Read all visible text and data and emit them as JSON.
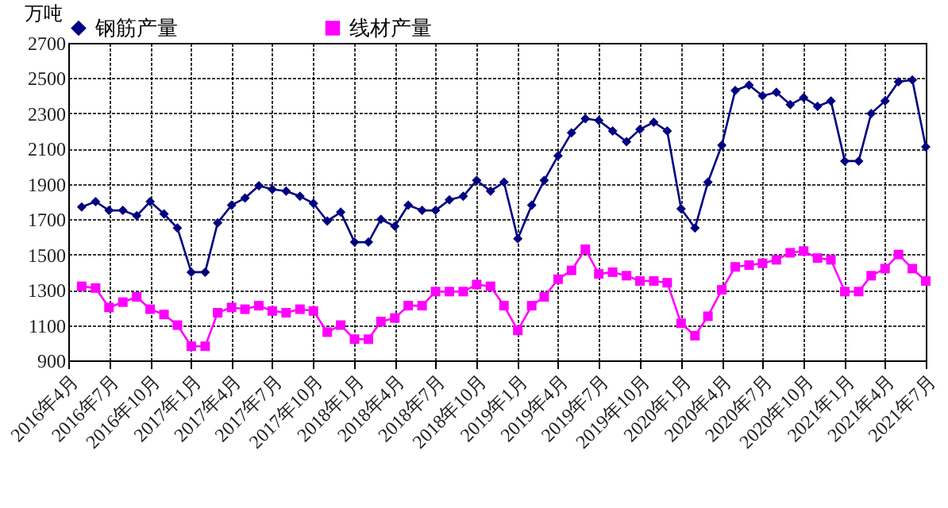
{
  "chart_data": {
    "type": "line",
    "ylabel": "万吨",
    "x": [
      "2016-05",
      "2016-06",
      "2016-07",
      "2016-08",
      "2016-09",
      "2016-10",
      "2016-11",
      "2016-12",
      "2017-01",
      "2017-02",
      "2017-03",
      "2017-04",
      "2017-05",
      "2017-06",
      "2017-07",
      "2017-08",
      "2017-09",
      "2017-10",
      "2017-11",
      "2017-12",
      "2018-01",
      "2018-02",
      "2018-03",
      "2018-04",
      "2018-05",
      "2018-06",
      "2018-07",
      "2018-08",
      "2018-09",
      "2018-10",
      "2018-11",
      "2018-12",
      "2019-01",
      "2019-02",
      "2019-03",
      "2019-04",
      "2019-05",
      "2019-06",
      "2019-07",
      "2019-08",
      "2019-09",
      "2019-10",
      "2019-11",
      "2019-12",
      "2020-01",
      "2020-02",
      "2020-03",
      "2020-04",
      "2020-05",
      "2020-06",
      "2020-07",
      "2020-08",
      "2020-09",
      "2020-10",
      "2020-11",
      "2020-12",
      "2021-01",
      "2021-02",
      "2021-03",
      "2021-04",
      "2021-05",
      "2021-06",
      "2021-07"
    ],
    "series": [
      {
        "name": "钢筋产量",
        "color": "#000080",
        "marker": "diamond",
        "values": [
          1770,
          1800,
          1750,
          1750,
          1720,
          1800,
          1730,
          1650,
          1400,
          1400,
          1680,
          1780,
          1820,
          1890,
          1870,
          1860,
          1830,
          1790,
          1690,
          1740,
          1570,
          1570,
          1700,
          1660,
          1780,
          1750,
          1750,
          1810,
          1830,
          1920,
          1860,
          1910,
          1590,
          1780,
          1920,
          2060,
          2190,
          2270,
          2260,
          2200,
          2140,
          2210,
          2250,
          2200,
          1760,
          1650,
          1910,
          2120,
          2430,
          2460,
          2400,
          2420,
          2350,
          2390,
          2340,
          2370,
          2030,
          2030,
          2300,
          2370,
          2480,
          2490,
          2110
        ]
      },
      {
        "name": "线材产量",
        "color": "#ff00ff",
        "marker": "square",
        "values": [
          1320,
          1310,
          1200,
          1230,
          1260,
          1190,
          1160,
          1100,
          980,
          980,
          1170,
          1200,
          1190,
          1210,
          1180,
          1170,
          1190,
          1180,
          1060,
          1100,
          1020,
          1020,
          1120,
          1140,
          1210,
          1210,
          1290,
          1290,
          1290,
          1330,
          1320,
          1210,
          1070,
          1210,
          1260,
          1360,
          1410,
          1530,
          1390,
          1400,
          1380,
          1350,
          1350,
          1340,
          1110,
          1040,
          1150,
          1300,
          1430,
          1440,
          1450,
          1470,
          1510,
          1520,
          1480,
          1470,
          1290,
          1290,
          1380,
          1420,
          1500,
          1420,
          1350
        ]
      }
    ],
    "xlim": [
      "2016-04",
      "2021-07"
    ],
    "xticks": [
      {
        "value": "2016-04",
        "label": "2016年4月"
      },
      {
        "value": "2016-07",
        "label": "2016年7月"
      },
      {
        "value": "2016-10",
        "label": "2016年10月"
      },
      {
        "value": "2017-01",
        "label": "2017年1月"
      },
      {
        "value": "2017-04",
        "label": "2017年4月"
      },
      {
        "value": "2017-07",
        "label": "2017年7月"
      },
      {
        "value": "2017-10",
        "label": "2017年10月"
      },
      {
        "value": "2018-01",
        "label": "2018年1月"
      },
      {
        "value": "2018-04",
        "label": "2018年4月"
      },
      {
        "value": "2018-07",
        "label": "2018年7月"
      },
      {
        "value": "2018-10",
        "label": "2018年10月"
      },
      {
        "value": "2019-01",
        "label": "2019年1月"
      },
      {
        "value": "2019-04",
        "label": "2019年4月"
      },
      {
        "value": "2019-07",
        "label": "2019年7月"
      },
      {
        "value": "2019-10",
        "label": "2019年10月"
      },
      {
        "value": "2020-01",
        "label": "2020年1月"
      },
      {
        "value": "2020-04",
        "label": "2020年4月"
      },
      {
        "value": "2020-07",
        "label": "2020年7月"
      },
      {
        "value": "2020-10",
        "label": "2020年10月"
      },
      {
        "value": "2021-01",
        "label": "2021年1月"
      },
      {
        "value": "2021-04",
        "label": "2021年4月"
      },
      {
        "value": "2021-07",
        "label": "2021年7月"
      }
    ],
    "ylim": [
      900,
      2700
    ],
    "yticks": [
      900,
      1100,
      1300,
      1500,
      1700,
      1900,
      2100,
      2300,
      2500,
      2700
    ],
    "grid": true,
    "legend": "top",
    "line_style": "solid"
  }
}
